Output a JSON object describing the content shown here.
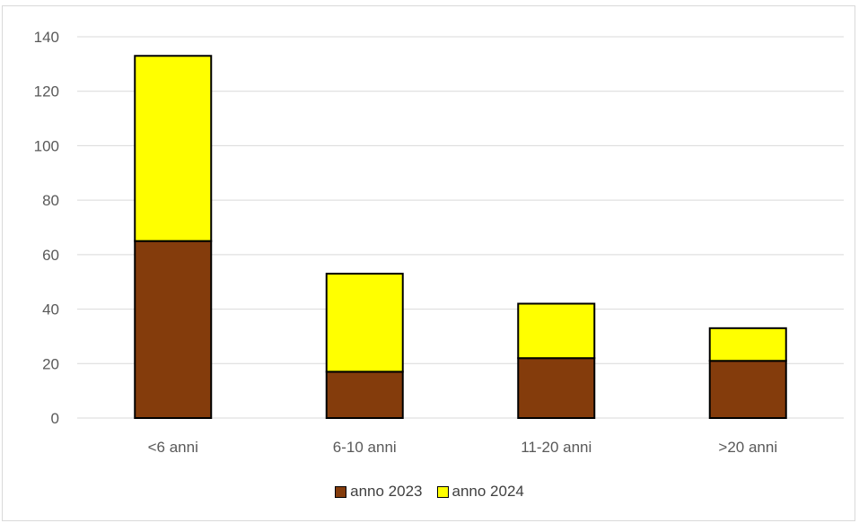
{
  "chart_data": {
    "type": "bar",
    "stacked": true,
    "categories": [
      "<6 anni",
      "6-10 anni",
      "11-20 anni",
      ">20 anni"
    ],
    "series": [
      {
        "name": "anno 2023",
        "values": [
          65,
          17,
          22,
          21
        ],
        "color": "#843C0C"
      },
      {
        "name": "anno 2024",
        "values": [
          68,
          36,
          20,
          12
        ],
        "color": "#FFFF00"
      }
    ],
    "ylim": [
      0,
      140
    ],
    "yticks": [
      0,
      20,
      40,
      60,
      80,
      100,
      120,
      140
    ],
    "grid": true,
    "legend_position": "bottom",
    "title": "",
    "xlabel": "",
    "ylabel": ""
  }
}
